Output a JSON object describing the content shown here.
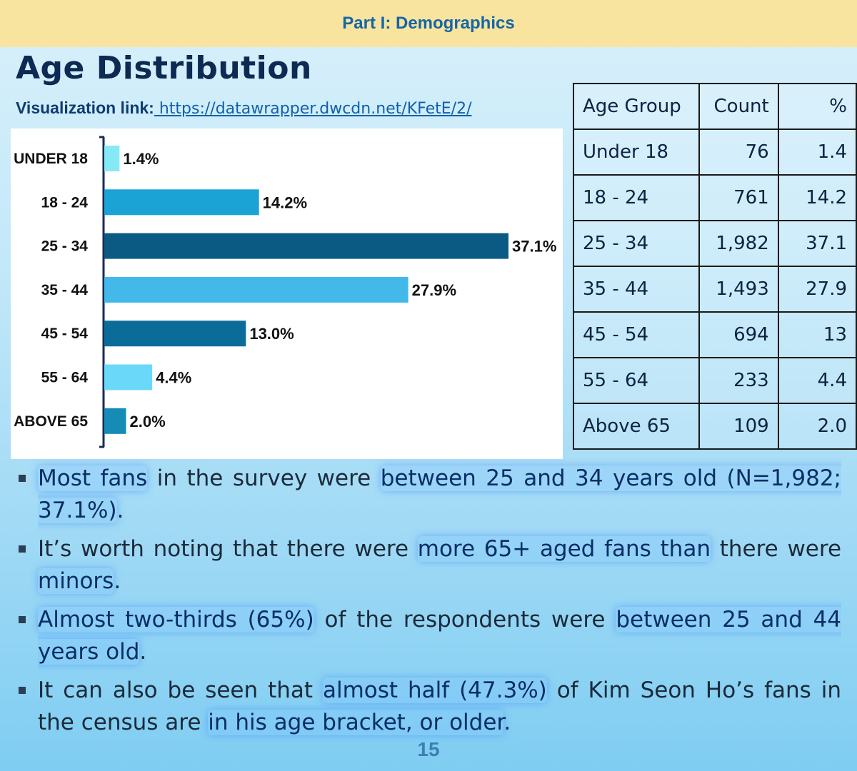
{
  "header": {
    "section": "Part I: Demographics"
  },
  "title": "Age Distribution",
  "visualization": {
    "prefix": "Visualization link:",
    "url": " https://datawrapper.dwcdn.net/KFetE/2/"
  },
  "chart_data": {
    "type": "bar",
    "orientation": "horizontal",
    "categories": [
      "UNDER 18",
      "18 - 24",
      "25 - 34",
      "35 - 44",
      "45 - 54",
      "55 - 64",
      "ABOVE 65"
    ],
    "values": [
      1.4,
      14.2,
      37.1,
      27.9,
      13.0,
      4.4,
      2.0
    ],
    "value_labels": [
      "1.4%",
      "14.2%",
      "37.1%",
      "27.9%",
      "13.0%",
      "4.4%",
      "2.0%"
    ],
    "colors": [
      "#86eaf6",
      "#1aa3d4",
      "#0a5a84",
      "#42b9e8",
      "#0b6c9a",
      "#6ad9f9",
      "#158bb6"
    ],
    "xlim": [
      0,
      37.1
    ],
    "title": "",
    "xlabel": "",
    "ylabel": ""
  },
  "table": {
    "headers": [
      "Age Group",
      "Count",
      "%"
    ],
    "rows": [
      [
        "Under 18",
        "76",
        "1.4"
      ],
      [
        "18 - 24",
        "761",
        "14.2"
      ],
      [
        "25 - 34",
        "1,982",
        "37.1"
      ],
      [
        "35 - 44",
        "1,493",
        "27.9"
      ],
      [
        "45 - 54",
        "694",
        "13"
      ],
      [
        "55 - 64",
        "233",
        "4.4"
      ],
      [
        "Above 65",
        "109",
        "2.0"
      ]
    ]
  },
  "bullets": [
    [
      {
        "text": "Most fans",
        "hl": true
      },
      {
        "text": " in the survey were ",
        "hl": false
      },
      {
        "text": "between 25 and 34 years old (N=1,982; 37.1%)",
        "hl": true
      },
      {
        "text": ".",
        "hl": false
      }
    ],
    [
      {
        "text": "It’s worth noting that there were ",
        "hl": false
      },
      {
        "text": "more 65+ aged fans than",
        "hl": true
      },
      {
        "text": " there were ",
        "hl": false
      },
      {
        "text": "minors",
        "hl": true
      },
      {
        "text": ".",
        "hl": false
      }
    ],
    [
      {
        "text": "Almost two-thirds (65%)",
        "hl": true
      },
      {
        "text": " of the respondents were ",
        "hl": false
      },
      {
        "text": "between 25 and 44 years old",
        "hl": true
      },
      {
        "text": ".",
        "hl": false
      }
    ],
    [
      {
        "text": "It can also be seen that ",
        "hl": false
      },
      {
        "text": "almost half (47.3%)",
        "hl": true
      },
      {
        "text": " of Kim Seon Ho’s fans in the census are ",
        "hl": false
      },
      {
        "text": "in his age bracket, or older",
        "hl": true
      },
      {
        "text": ".",
        "hl": false
      }
    ]
  ],
  "page_number": "15"
}
